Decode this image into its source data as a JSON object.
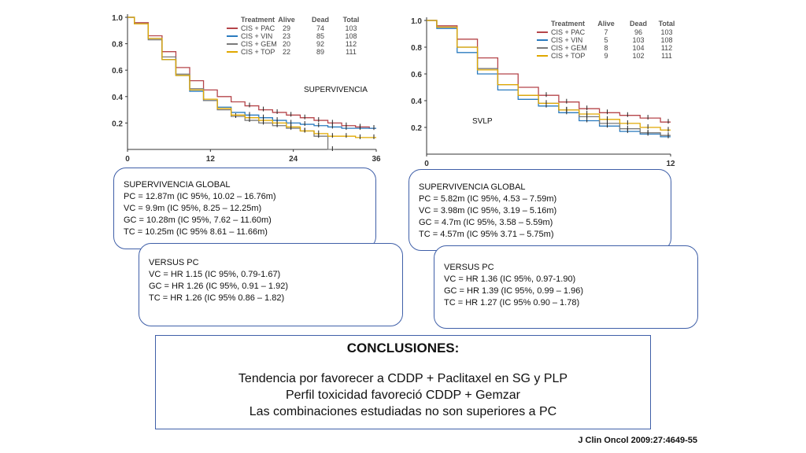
{
  "chart_data": [
    {
      "type": "line",
      "title": "SUPERVIVENCIA",
      "xlabel": "",
      "ylabel": "",
      "xlim": [
        0,
        36
      ],
      "ylim": [
        0,
        1.0
      ],
      "x_ticks": [
        "0",
        "12",
        "24",
        "36"
      ],
      "y_ticks": [
        "0.2",
        "0.4",
        "0.6",
        "0.8",
        "1.0"
      ],
      "legend": {
        "headers": [
          "Treatment",
          "Alive",
          "Dead",
          "Total"
        ],
        "rows": [
          {
            "name": "CIS + PAC",
            "color": "#b5454a",
            "alive": "29",
            "dead": "74",
            "total": "103"
          },
          {
            "name": "CIS + VIN",
            "color": "#2b7bbf",
            "alive": "23",
            "dead": "85",
            "total": "108"
          },
          {
            "name": "CIS + GEM",
            "color": "#7a7a7a",
            "alive": "20",
            "dead": "92",
            "total": "112"
          },
          {
            "name": "CIS + TOP",
            "color": "#e0a800",
            "alive": "22",
            "dead": "89",
            "total": "111"
          }
        ]
      },
      "series": [
        {
          "name": "CIS + PAC",
          "x": [
            0,
            2,
            4,
            6,
            8,
            10,
            12,
            14,
            16,
            18,
            20,
            22,
            24,
            26,
            28,
            30,
            32,
            34,
            36
          ],
          "y": [
            1.0,
            0.96,
            0.86,
            0.74,
            0.62,
            0.52,
            0.45,
            0.4,
            0.36,
            0.33,
            0.3,
            0.28,
            0.26,
            0.24,
            0.22,
            0.2,
            0.18,
            0.17,
            0.16
          ]
        },
        {
          "name": "CIS + VIN",
          "x": [
            0,
            2,
            4,
            6,
            8,
            10,
            12,
            14,
            16,
            18,
            20,
            22,
            24,
            26,
            28,
            30,
            32,
            34,
            36
          ],
          "y": [
            1.0,
            0.95,
            0.84,
            0.68,
            0.56,
            0.44,
            0.37,
            0.32,
            0.28,
            0.26,
            0.24,
            0.22,
            0.2,
            0.19,
            0.18,
            0.17,
            0.16,
            0.16,
            0.16
          ]
        },
        {
          "name": "CIS + GEM",
          "x": [
            0,
            2,
            4,
            6,
            8,
            10,
            12,
            14,
            16,
            18,
            20,
            22,
            24,
            26,
            28,
            30
          ],
          "y": [
            1.0,
            0.95,
            0.83,
            0.7,
            0.57,
            0.46,
            0.37,
            0.3,
            0.25,
            0.22,
            0.2,
            0.18,
            0.16,
            0.14,
            0.1,
            0.0
          ]
        },
        {
          "name": "CIS + TOP",
          "x": [
            0,
            2,
            4,
            6,
            8,
            10,
            12,
            14,
            16,
            18,
            20,
            22,
            24,
            26,
            28,
            30,
            32,
            34,
            36
          ],
          "y": [
            1.0,
            0.95,
            0.84,
            0.68,
            0.56,
            0.45,
            0.38,
            0.31,
            0.26,
            0.24,
            0.22,
            0.2,
            0.17,
            0.14,
            0.12,
            0.1,
            0.1,
            0.09,
            0.09
          ]
        }
      ]
    },
    {
      "type": "line",
      "title": "SVLP",
      "xlabel": "",
      "ylabel": "",
      "xlim": [
        0,
        12
      ],
      "ylim": [
        0,
        1.0
      ],
      "x_ticks": [
        "0",
        "12"
      ],
      "y_ticks": [
        "0.2",
        "0.4",
        "0.6",
        "0.8",
        "1.0"
      ],
      "legend": {
        "headers": [
          "Treatment",
          "Alive",
          "Dead",
          "Total"
        ],
        "rows": [
          {
            "name": "CIS + PAC",
            "color": "#b5454a",
            "alive": "7",
            "dead": "96",
            "total": "103"
          },
          {
            "name": "CIS + VIN",
            "color": "#2b7bbf",
            "alive": "5",
            "dead": "103",
            "total": "108"
          },
          {
            "name": "CIS + GEM",
            "color": "#7a7a7a",
            "alive": "8",
            "dead": "104",
            "total": "112"
          },
          {
            "name": "CIS + TOP",
            "color": "#e0a800",
            "alive": "9",
            "dead": "102",
            "total": "111"
          }
        ]
      },
      "series": [
        {
          "name": "CIS + PAC",
          "x": [
            0,
            1,
            2,
            3,
            4,
            5,
            6,
            7,
            8,
            9,
            10,
            11,
            12
          ],
          "y": [
            1.0,
            0.96,
            0.86,
            0.72,
            0.6,
            0.5,
            0.44,
            0.39,
            0.34,
            0.31,
            0.29,
            0.27,
            0.24
          ]
        },
        {
          "name": "CIS + VIN",
          "x": [
            0,
            1,
            2,
            3,
            4,
            5,
            6,
            7,
            8,
            9,
            10,
            11,
            12
          ],
          "y": [
            1.0,
            0.94,
            0.76,
            0.6,
            0.48,
            0.41,
            0.36,
            0.31,
            0.25,
            0.21,
            0.17,
            0.15,
            0.13
          ]
        },
        {
          "name": "CIS + GEM",
          "x": [
            0,
            1,
            2,
            3,
            4,
            5,
            6,
            7,
            8,
            9,
            10,
            11,
            12
          ],
          "y": [
            1.0,
            0.95,
            0.8,
            0.64,
            0.52,
            0.44,
            0.38,
            0.33,
            0.28,
            0.23,
            0.19,
            0.16,
            0.14
          ]
        },
        {
          "name": "CIS + TOP",
          "x": [
            0,
            1,
            2,
            3,
            4,
            5,
            6,
            7,
            8,
            9,
            10,
            11,
            12
          ],
          "y": [
            1.0,
            0.95,
            0.8,
            0.63,
            0.52,
            0.44,
            0.38,
            0.33,
            0.3,
            0.26,
            0.23,
            0.2,
            0.18
          ]
        }
      ]
    }
  ],
  "boxes": {
    "sg": {
      "heading": "SUPERVIVENCIA GLOBAL",
      "lines": [
        "PC = 12.87m (IC 95%, 10.02 – 16.76m)",
        "VC = 9.9m (IC 95%, 8.25 – 12.25m)",
        "GC = 10.28m (IC 95%, 7.62 – 11.60m)",
        "TC = 10.25m (IC 95% 8.61 – 11.66m)"
      ]
    },
    "sg_versus": {
      "heading": "VERSUS PC",
      "lines": [
        "VC = HR 1.15 (IC 95%, 0.79-1.67)",
        "GC = HR 1.26 (IC 95%, 0.91 – 1.92)",
        "TC = HR 1.26 (IC 95% 0.86 – 1.82)"
      ]
    },
    "pfs": {
      "heading": "SUPERVIVENCIA GLOBAL",
      "lines": [
        "PC = 5.82m (IC 95%, 4.53 – 7.59m)",
        "VC = 3.98m (IC 95%, 3.19 – 5.16m)",
        "GC = 4.7m (IC 95%, 3.58 – 5.59m)",
        "TC = 4.57m (IC 95% 3.71 – 5.75m)"
      ]
    },
    "pfs_versus": {
      "heading": "VERSUS PC",
      "lines": [
        "VC = HR 1.36 (IC 95%, 0.97-1.90)",
        "GC = HR 1.39 (IC 95%, 0.99 – 1.96)",
        "TC = HR 1.27 (IC 95% 0.90 – 1.78)"
      ]
    }
  },
  "conclusions": {
    "title": "CONCLUSIONES:",
    "lines": [
      "Tendencia por favorecer a CDDP + Paclitaxel en SG y PLP",
      "Perfil toxicidad favoreció CDDP + Gemzar",
      "Las combinaciones estudiadas no son superiores a PC"
    ]
  },
  "source": "J Clin Oncol 2009:27:4649-55"
}
